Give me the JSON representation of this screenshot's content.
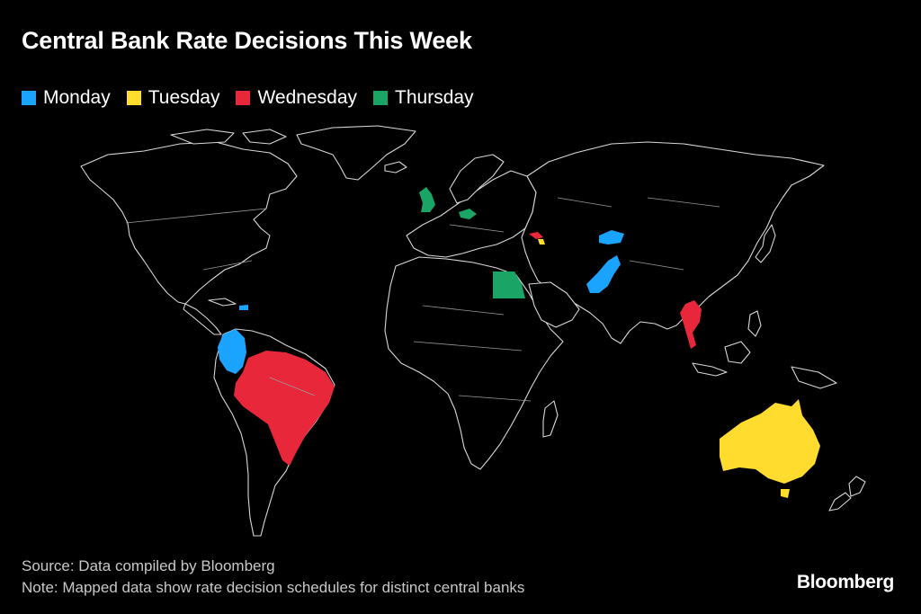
{
  "title": "Central Bank Rate Decisions This Week",
  "legend": [
    {
      "label": "Monday",
      "color": "#1aa3ff"
    },
    {
      "label": "Tuesday",
      "color": "#ffdc2e"
    },
    {
      "label": "Wednesday",
      "color": "#e8283a"
    },
    {
      "label": "Thursday",
      "color": "#1aa465"
    }
  ],
  "highlighted_countries": {
    "Monday": [
      "Colombia",
      "Dominican Republic",
      "Kazakhstan",
      "Pakistan"
    ],
    "Tuesday": [
      "Australia",
      "Armenia"
    ],
    "Wednesday": [
      "Brazil",
      "Thailand",
      "Georgia"
    ],
    "Thursday": [
      "United Kingdom",
      "Czech Republic",
      "Egypt"
    ]
  },
  "footer": {
    "source": "Source: Data compiled by Bloomberg",
    "note": "Note: Mapped data show rate decision schedules for distinct central banks"
  },
  "brand": "Bloomberg"
}
